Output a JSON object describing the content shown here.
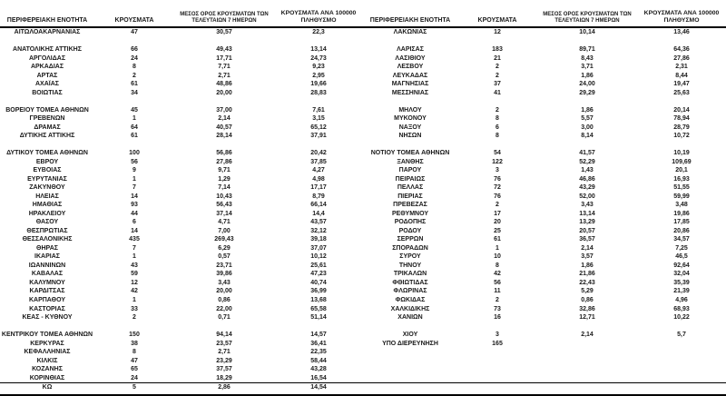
{
  "colors": {
    "text": "#1a1a1a",
    "line": "#000000",
    "background": "#ffffff"
  },
  "table": {
    "headers": {
      "region": "ΠΕΡΙΦΕΡΕΙΑΚΗ ΕΝΟΤΗΤΑ",
      "cases": "ΚΡΟΥΣΜΑΤΑ",
      "avg7": "ΜΕΣΟΣ ΟΡΟΣ ΚΡΟΥΣΜΑΤΩΝ ΤΩΝ ΤΕΛΕΥΤΑΙΩΝ 7 ΗΜΕΡΩΝ",
      "per100k": "ΚΡΟΥΣΜΑΤΑ ΑΝΑ 100000 ΠΛΗΘΥΣΜΟ"
    },
    "left_rows": [
      [
        "ΑΙΤΩΛΟΑΚΑΡΝΑΝΙΑΣ",
        "47",
        "30,57",
        "22,3"
      ],
      null,
      [
        "ΑΝΑΤΟΛΙΚΗΣ ΑΤΤΙΚΗΣ",
        "66",
        "49,43",
        "13,14"
      ],
      [
        "ΑΡΓΟΛΙΔΑΣ",
        "24",
        "17,71",
        "24,73"
      ],
      [
        "ΑΡΚΑΔΙΑΣ",
        "8",
        "7,71",
        "9,23"
      ],
      [
        "ΑΡΤΑΣ",
        "2",
        "2,71",
        "2,95"
      ],
      [
        "ΑΧΑΪΑΣ",
        "61",
        "48,86",
        "19,66"
      ],
      [
        "ΒΟΙΩΤΙΑΣ",
        "34",
        "20,00",
        "28,83"
      ],
      null,
      [
        "ΒΟΡΕΙΟΥ ΤΟΜΕΑ ΑΘΗΝΩΝ",
        "45",
        "37,00",
        "7,61"
      ],
      [
        "ΓΡΕΒΕΝΩΝ",
        "1",
        "2,14",
        "3,15"
      ],
      [
        "ΔΡΑΜΑΣ",
        "64",
        "40,57",
        "65,12"
      ],
      [
        "ΔΥΤΙΚΗΣ ΑΤΤΙΚΗΣ",
        "61",
        "28,14",
        "37,91"
      ],
      null,
      [
        "ΔΥΤΙΚΟΥ ΤΟΜΕΑ ΑΘΗΝΩΝ",
        "100",
        "56,86",
        "20,42"
      ],
      [
        "ΕΒΡΟΥ",
        "56",
        "27,86",
        "37,85"
      ],
      [
        "ΕΥΒΟΙΑΣ",
        "9",
        "9,71",
        "4,27"
      ],
      [
        "ΕΥΡΥΤΑΝΙΑΣ",
        "1",
        "1,29",
        "4,98"
      ],
      [
        "ΖΑΚΥΝΘΟΥ",
        "7",
        "7,14",
        "17,17"
      ],
      [
        "ΗΛΕΙΑΣ",
        "14",
        "10,43",
        "8,79"
      ],
      [
        "ΗΜΑΘΙΑΣ",
        "93",
        "56,43",
        "66,14"
      ],
      [
        "ΗΡΑΚΛΕΙΟΥ",
        "44",
        "37,14",
        "14,4"
      ],
      [
        "ΘΑΣΟΥ",
        "6",
        "4,71",
        "43,57"
      ],
      [
        "ΘΕΣΠΡΩΤΙΑΣ",
        "14",
        "7,00",
        "32,12"
      ],
      [
        "ΘΕΣΣΑΛΟΝΙΚΗΣ",
        "435",
        "269,43",
        "39,18"
      ],
      [
        "ΘΗΡΑΣ",
        "7",
        "6,29",
        "37,07"
      ],
      [
        "ΙΚΑΡΙΑΣ",
        "1",
        "0,57",
        "10,12"
      ],
      [
        "ΙΩΑΝΝΙΝΩΝ",
        "43",
        "23,71",
        "25,61"
      ],
      [
        "ΚΑΒΑΛΑΣ",
        "59",
        "39,86",
        "47,23"
      ],
      [
        "ΚΑΛΥΜΝΟΥ",
        "12",
        "3,43",
        "40,74"
      ],
      [
        "ΚΑΡΔΙΤΣΑΣ",
        "42",
        "20,00",
        "36,99"
      ],
      [
        "ΚΑΡΠΑΘΟΥ",
        "1",
        "0,86",
        "13,68"
      ],
      [
        "ΚΑΣΤΟΡΙΑΣ",
        "33",
        "22,00",
        "65,58"
      ],
      [
        "ΚΕΑΣ - ΚΥΘΝΟΥ",
        "2",
        "0,71",
        "51,14"
      ],
      null,
      [
        "ΚΕΝΤΡΙΚΟΥ ΤΟΜΕΑ ΑΘΗΝΩΝ",
        "150",
        "94,14",
        "14,57"
      ],
      [
        "ΚΕΡΚΥΡΑΣ",
        "38",
        "23,57",
        "36,41"
      ],
      [
        "ΚΕΦΑΛΛΗΝΙΑΣ",
        "8",
        "2,71",
        "22,35"
      ],
      [
        "ΚΙΛΚΙΣ",
        "47",
        "23,29",
        "58,44"
      ],
      [
        "ΚΟΖΑΝΗΣ",
        "65",
        "37,57",
        "43,28"
      ],
      [
        "ΚΟΡΙΝΘΙΑΣ",
        "24",
        "18,29",
        "16,54"
      ],
      [
        "ΚΩ",
        "5",
        "2,86",
        "14,54"
      ]
    ],
    "right_rows": [
      [
        "ΛΑΚΩΝΙΑΣ",
        "12",
        "10,14",
        "13,46"
      ],
      null,
      [
        "ΛΑΡΙΣΑΣ",
        "183",
        "89,71",
        "64,36"
      ],
      [
        "ΛΑΣΙΘΙΟΥ",
        "21",
        "8,43",
        "27,86"
      ],
      [
        "ΛΕΣΒΟΥ",
        "2",
        "3,71",
        "2,31"
      ],
      [
        "ΛΕΥΚΑΔΑΣ",
        "2",
        "1,86",
        "8,44"
      ],
      [
        "ΜΑΓΝΗΣΙΑΣ",
        "37",
        "24,00",
        "19,47"
      ],
      [
        "ΜΕΣΣΗΝΙΑΣ",
        "41",
        "29,29",
        "25,63"
      ],
      null,
      [
        "ΜΗΛΟΥ",
        "2",
        "1,86",
        "20,14"
      ],
      [
        "ΜΥΚΟΝΟΥ",
        "8",
        "5,57",
        "78,94"
      ],
      [
        "ΝΑΞΟΥ",
        "6",
        "3,00",
        "28,79"
      ],
      [
        "ΝΗΣΩΝ",
        "8",
        "8,14",
        "10,72"
      ],
      null,
      [
        "ΝΟΤΙΟΥ ΤΟΜΕΑ ΑΘΗΝΩΝ",
        "54",
        "41,57",
        "10,19"
      ],
      [
        "ΞΑΝΘΗΣ",
        "122",
        "52,29",
        "109,69"
      ],
      [
        "ΠΑΡΟΥ",
        "3",
        "1,43",
        "20,1"
      ],
      [
        "ΠΕΙΡΑΙΩΣ",
        "76",
        "46,86",
        "16,93"
      ],
      [
        "ΠΕΛΛΑΣ",
        "72",
        "43,29",
        "51,55"
      ],
      [
        "ΠΙΕΡΙΑΣ",
        "76",
        "52,00",
        "59,99"
      ],
      [
        "ΠΡΕΒΕΖΑΣ",
        "2",
        "3,43",
        "3,48"
      ],
      [
        "ΡΕΘΥΜΝΟΥ",
        "17",
        "13,14",
        "19,86"
      ],
      [
        "ΡΟΔΟΠΗΣ",
        "20",
        "13,29",
        "17,85"
      ],
      [
        "ΡΟΔΟΥ",
        "25",
        "20,57",
        "20,86"
      ],
      [
        "ΣΕΡΡΩΝ",
        "61",
        "36,57",
        "34,57"
      ],
      [
        "ΣΠΟΡΑΔΩΝ",
        "1",
        "2,14",
        "7,25"
      ],
      [
        "ΣΥΡΟΥ",
        "10",
        "3,57",
        "46,5"
      ],
      [
        "ΤΗΝΟΥ",
        "8",
        "1,86",
        "92,64"
      ],
      [
        "ΤΡΙΚΑΛΩΝ",
        "42",
        "21,86",
        "32,04"
      ],
      [
        "ΦΘΙΩΤΙΔΑΣ",
        "56",
        "22,43",
        "35,39"
      ],
      [
        "ΦΛΩΡΙΝΑΣ",
        "11",
        "5,29",
        "21,39"
      ],
      [
        "ΦΩΚΙΔΑΣ",
        "2",
        "0,86",
        "4,96"
      ],
      [
        "ΧΑΛΚΙΔΙΚΗΣ",
        "73",
        "32,86",
        "68,93"
      ],
      [
        "ΧΑΝΙΩΝ",
        "16",
        "12,71",
        "10,22"
      ],
      null,
      [
        "ΧΙΟΥ",
        "3",
        "2,14",
        "5,7"
      ],
      [
        "ΥΠΟ ΔΙΕΡΕΥΝΗΣΗ",
        "165",
        "",
        ""
      ],
      null,
      null,
      null,
      null,
      [
        "",
        "",
        "",
        ""
      ]
    ]
  }
}
